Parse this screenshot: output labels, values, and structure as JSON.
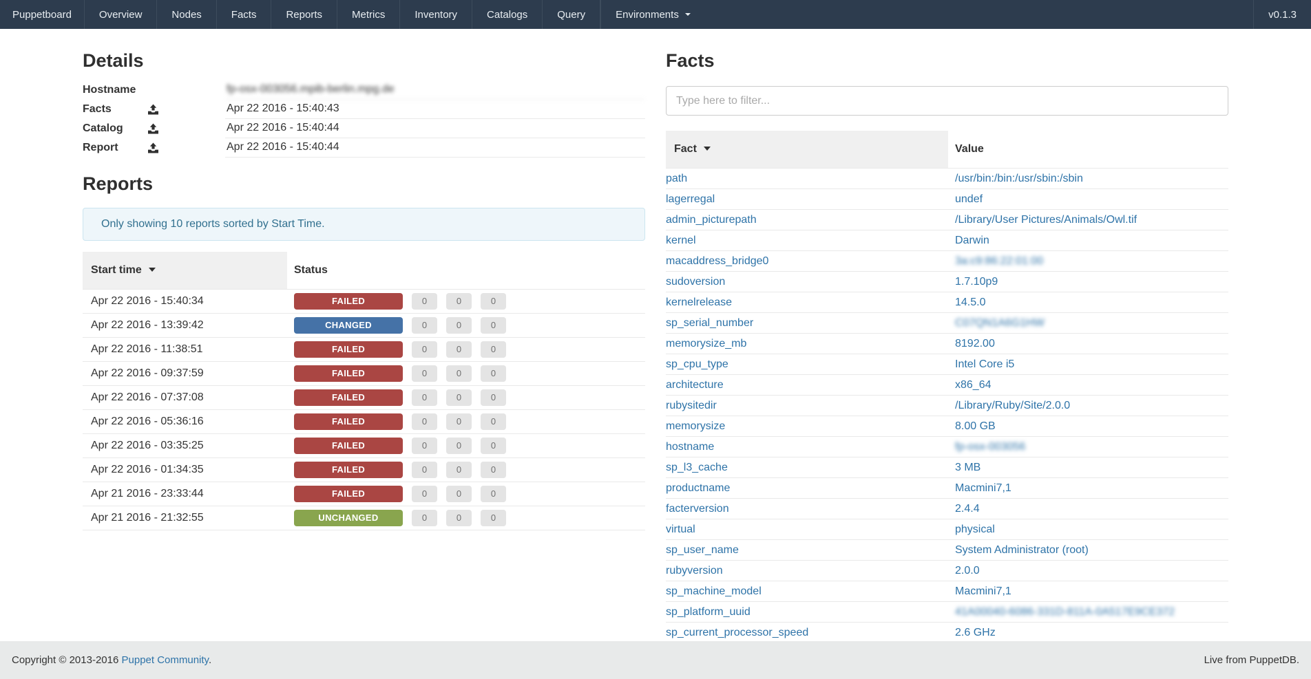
{
  "navbar": {
    "brand": "Puppetboard",
    "items": [
      "Overview",
      "Nodes",
      "Facts",
      "Reports",
      "Metrics",
      "Inventory",
      "Catalogs",
      "Query"
    ],
    "environments_label": "Environments",
    "version": "v0.1.3"
  },
  "details": {
    "title": "Details",
    "rows": [
      {
        "label": "Hostname",
        "value": "fp-osx-003056.mpib-berlin.mpg.de",
        "blurred": true,
        "icon": false
      },
      {
        "label": "Facts",
        "value": "Apr 22 2016 - 15:40:43",
        "blurred": false,
        "icon": true
      },
      {
        "label": "Catalog",
        "value": "Apr 22 2016 - 15:40:44",
        "blurred": false,
        "icon": true
      },
      {
        "label": "Report",
        "value": "Apr 22 2016 - 15:40:44",
        "blurred": false,
        "icon": true
      }
    ]
  },
  "reports": {
    "title": "Reports",
    "alert": "Only showing 10 reports sorted by Start Time.",
    "columns": {
      "start_time": "Start time",
      "status": "Status"
    },
    "rows": [
      {
        "start_time": "Apr 22 2016 - 15:40:34",
        "status": "FAILED",
        "counts": [
          "0",
          "0",
          "0"
        ]
      },
      {
        "start_time": "Apr 22 2016 - 13:39:42",
        "status": "CHANGED",
        "counts": [
          "0",
          "0",
          "0"
        ]
      },
      {
        "start_time": "Apr 22 2016 - 11:38:51",
        "status": "FAILED",
        "counts": [
          "0",
          "0",
          "0"
        ]
      },
      {
        "start_time": "Apr 22 2016 - 09:37:59",
        "status": "FAILED",
        "counts": [
          "0",
          "0",
          "0"
        ]
      },
      {
        "start_time": "Apr 22 2016 - 07:37:08",
        "status": "FAILED",
        "counts": [
          "0",
          "0",
          "0"
        ]
      },
      {
        "start_time": "Apr 22 2016 - 05:36:16",
        "status": "FAILED",
        "counts": [
          "0",
          "0",
          "0"
        ]
      },
      {
        "start_time": "Apr 22 2016 - 03:35:25",
        "status": "FAILED",
        "counts": [
          "0",
          "0",
          "0"
        ]
      },
      {
        "start_time": "Apr 22 2016 - 01:34:35",
        "status": "FAILED",
        "counts": [
          "0",
          "0",
          "0"
        ]
      },
      {
        "start_time": "Apr 21 2016 - 23:33:44",
        "status": "FAILED",
        "counts": [
          "0",
          "0",
          "0"
        ]
      },
      {
        "start_time": "Apr 21 2016 - 21:32:55",
        "status": "UNCHANGED",
        "counts": [
          "0",
          "0",
          "0"
        ]
      }
    ]
  },
  "facts": {
    "title": "Facts",
    "filter_placeholder": "Type here to filter...",
    "columns": {
      "fact": "Fact",
      "value": "Value"
    },
    "rows": [
      {
        "fact": "path",
        "value": "/usr/bin:/bin:/usr/sbin:/sbin",
        "blurred": false
      },
      {
        "fact": "lagerregal",
        "value": "undef",
        "blurred": false
      },
      {
        "fact": "admin_picturepath",
        "value": "/Library/User Pictures/Animals/Owl.tif",
        "blurred": false
      },
      {
        "fact": "kernel",
        "value": "Darwin",
        "blurred": false
      },
      {
        "fact": "macaddress_bridge0",
        "value": "3a:c9:86:22:01:00",
        "blurred": true
      },
      {
        "fact": "sudoversion",
        "value": "1.7.10p9",
        "blurred": false
      },
      {
        "fact": "kernelrelease",
        "value": "14.5.0",
        "blurred": false
      },
      {
        "fact": "sp_serial_number",
        "value": "C07QN1A6G1HW",
        "blurred": true
      },
      {
        "fact": "memorysize_mb",
        "value": "8192.00",
        "blurred": false
      },
      {
        "fact": "sp_cpu_type",
        "value": "Intel Core i5",
        "blurred": false
      },
      {
        "fact": "architecture",
        "value": "x86_64",
        "blurred": false
      },
      {
        "fact": "rubysitedir",
        "value": "/Library/Ruby/Site/2.0.0",
        "blurred": false
      },
      {
        "fact": "memorysize",
        "value": "8.00 GB",
        "blurred": false
      },
      {
        "fact": "hostname",
        "value": "fp-osx-003056",
        "blurred": true
      },
      {
        "fact": "sp_l3_cache",
        "value": "3 MB",
        "blurred": false
      },
      {
        "fact": "productname",
        "value": "Macmini7,1",
        "blurred": false
      },
      {
        "fact": "facterversion",
        "value": "2.4.4",
        "blurred": false
      },
      {
        "fact": "virtual",
        "value": "physical",
        "blurred": false
      },
      {
        "fact": "sp_user_name",
        "value": "System Administrator (root)",
        "blurred": false
      },
      {
        "fact": "rubyversion",
        "value": "2.0.0",
        "blurred": false
      },
      {
        "fact": "sp_machine_model",
        "value": "Macmini7,1",
        "blurred": false
      },
      {
        "fact": "sp_platform_uuid",
        "value": "41A00040-6086-331D-811A-0A517E9CE372",
        "blurred": true
      },
      {
        "fact": "sp_current_processor_speed",
        "value": "2.6 GHz",
        "blurred": false
      }
    ]
  },
  "footer": {
    "copyright_prefix": "Copyright © 2013-2016 ",
    "community_link": "Puppet Community",
    "copyright_suffix": ".",
    "live": "Live from PuppetDB."
  },
  "colors": {
    "navbar_bg": "#2D3C4E",
    "link": "#2E73A8",
    "status_failed": "#AA4643",
    "status_changed": "#4572A7",
    "status_unchanged": "#89A54E",
    "footer_bg": "#E8EAEA"
  }
}
